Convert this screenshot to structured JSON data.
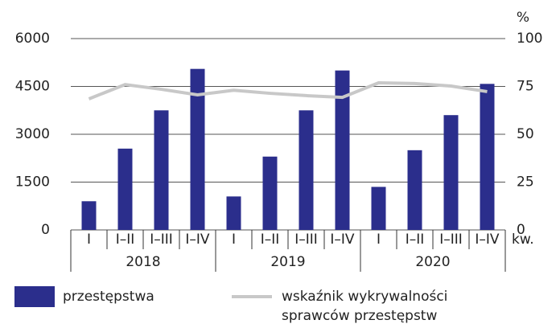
{
  "chart_data": {
    "type": "bar-line",
    "categories": [
      "I",
      "I–II",
      "I–III",
      "I–IV",
      "I",
      "I–II",
      "I–III",
      "I–IV",
      "I",
      "I–II",
      "I–III",
      "I–IV"
    ],
    "groups": [
      "2018",
      "2019",
      "2020"
    ],
    "x_label": "kw.",
    "series": [
      {
        "name": "przestępstwa",
        "type": "bar",
        "color": "#2b2e8c",
        "values": [
          900,
          2550,
          3750,
          5050,
          1050,
          2300,
          3750,
          5000,
          1350,
          2500,
          3600,
          4580
        ]
      },
      {
        "name": "wskaźnik wykrywalności sprawców przestępstw",
        "type": "line",
        "axis": "y2",
        "color": "#c8c8c8",
        "values": [
          68.5,
          76,
          73.5,
          70.6,
          73,
          71.4,
          70.2,
          69.3,
          76.9,
          76.5,
          75.2,
          72.3
        ]
      }
    ],
    "ylim": [
      0,
      6000
    ],
    "yticks": [
      0,
      1500,
      3000,
      4500,
      6000
    ],
    "y2lim": [
      0,
      100
    ],
    "y2ticks": [
      0,
      25,
      50,
      75,
      100
    ],
    "y2_label": "%",
    "grid": true
  }
}
